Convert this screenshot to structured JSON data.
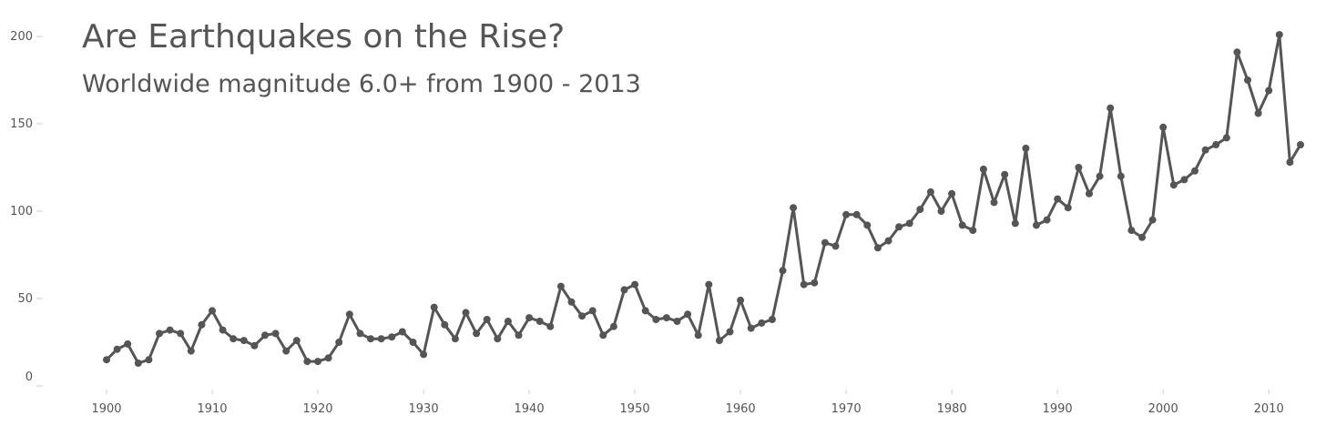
{
  "colors": {
    "series": "#555555",
    "text": "#555555",
    "tick": "#cfcfcf"
  },
  "chart_data": {
    "type": "line",
    "title": "Are Earthquakes on the Rise?",
    "subtitle": "Worldwide magnitude 6.0+ from 1900 - 2013",
    "xlabel": "",
    "ylabel": "",
    "xlim": [
      1900,
      2013
    ],
    "ylim": [
      0,
      200
    ],
    "x_ticks": [
      1900,
      1910,
      1920,
      1930,
      1940,
      1950,
      1960,
      1970,
      1980,
      1990,
      2000,
      2010
    ],
    "y_ticks": [
      0,
      50,
      100,
      150,
      200
    ],
    "grid": false,
    "legend": "none",
    "markers": true,
    "x": [
      1900,
      1901,
      1902,
      1903,
      1904,
      1905,
      1906,
      1907,
      1908,
      1909,
      1910,
      1911,
      1912,
      1913,
      1914,
      1915,
      1916,
      1917,
      1918,
      1919,
      1920,
      1921,
      1922,
      1923,
      1924,
      1925,
      1926,
      1927,
      1928,
      1929,
      1930,
      1931,
      1932,
      1933,
      1934,
      1935,
      1936,
      1937,
      1938,
      1939,
      1940,
      1941,
      1942,
      1943,
      1944,
      1945,
      1946,
      1947,
      1948,
      1949,
      1950,
      1951,
      1952,
      1953,
      1954,
      1955,
      1956,
      1957,
      1958,
      1959,
      1960,
      1961,
      1962,
      1963,
      1964,
      1965,
      1966,
      1967,
      1968,
      1969,
      1970,
      1971,
      1972,
      1973,
      1974,
      1975,
      1976,
      1977,
      1978,
      1979,
      1980,
      1981,
      1982,
      1983,
      1984,
      1985,
      1986,
      1987,
      1988,
      1989,
      1990,
      1991,
      1992,
      1993,
      1994,
      1995,
      1996,
      1997,
      1998,
      1999,
      2000,
      2001,
      2002,
      2003,
      2004,
      2005,
      2006,
      2007,
      2008,
      2009,
      2010,
      2011,
      2012,
      2013
    ],
    "series": [
      {
        "values": [
          15,
          21,
          24,
          13,
          15,
          30,
          32,
          30,
          20,
          35,
          43,
          32,
          27,
          26,
          23,
          29,
          30,
          20,
          26,
          14,
          14,
          16,
          25,
          41,
          30,
          27,
          27,
          28,
          31,
          25,
          18,
          45,
          35,
          27,
          42,
          30,
          38,
          27,
          37,
          29,
          39,
          37,
          34,
          57,
          48,
          40,
          43,
          29,
          34,
          55,
          58,
          43,
          38,
          39,
          37,
          41,
          29,
          58,
          26,
          31,
          49,
          33,
          36,
          38,
          66,
          102,
          58,
          59,
          82,
          80,
          98,
          98,
          92,
          79,
          83,
          91,
          93,
          101,
          111,
          100,
          110,
          92,
          89,
          124,
          105,
          121,
          93,
          136,
          92,
          95,
          107,
          102,
          125,
          110,
          120,
          159,
          120,
          89,
          85,
          95,
          148,
          115,
          118,
          123,
          135,
          138,
          142,
          191,
          175,
          156,
          169,
          201,
          128,
          138
        ]
      }
    ]
  }
}
